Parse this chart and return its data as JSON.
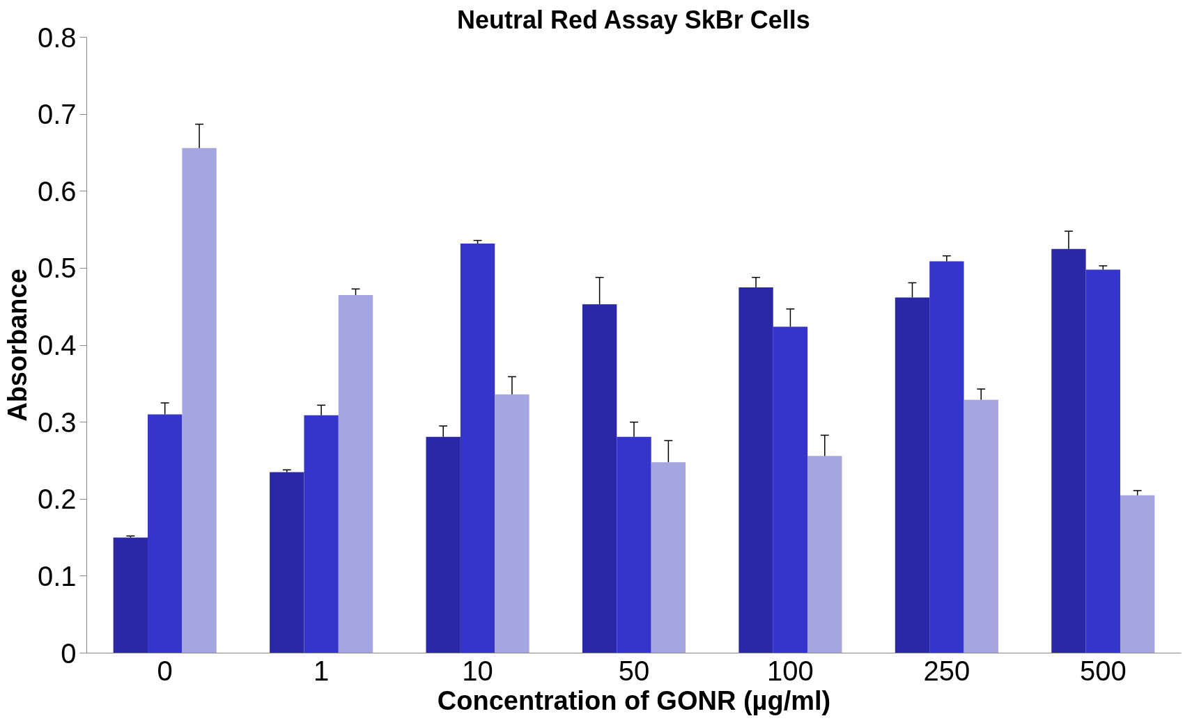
{
  "chart_data": {
    "type": "bar",
    "title": "Neutral Red Assay SkBr Cells",
    "xlabel": "Concentration of GONR (µg/ml)",
    "ylabel": "Absorbance",
    "categories": [
      "0",
      "1",
      "10",
      "50",
      "100",
      "250",
      "500"
    ],
    "series": [
      {
        "color": "#2a28a6",
        "values": [
          0.15,
          0.235,
          0.281,
          0.453,
          0.475,
          0.462,
          0.525
        ],
        "errors": [
          [
            0.15,
            0.152
          ],
          [
            0.235,
            0.238
          ],
          [
            0.281,
            0.295
          ],
          [
            0.453,
            0.488
          ],
          [
            0.475,
            0.488
          ],
          [
            0.462,
            0.481
          ],
          [
            0.525,
            0.548
          ]
        ]
      },
      {
        "color": "#3535cc",
        "values": [
          0.31,
          0.309,
          0.532,
          0.281,
          0.424,
          0.509,
          0.498
        ],
        "errors": [
          [
            0.31,
            0.325
          ],
          [
            0.309,
            0.322
          ],
          [
            0.532,
            0.536
          ],
          [
            0.281,
            0.3
          ],
          [
            0.424,
            0.447
          ],
          [
            0.509,
            0.516
          ],
          [
            0.498,
            0.503
          ]
        ]
      },
      {
        "color": "#a5a5e0",
        "values": [
          0.656,
          0.465,
          0.336,
          0.248,
          0.256,
          0.329,
          0.205
        ],
        "errors": [
          [
            0.656,
            0.687
          ],
          [
            0.465,
            0.473
          ],
          [
            0.336,
            0.359
          ],
          [
            0.248,
            0.276
          ],
          [
            0.256,
            0.283
          ],
          [
            0.329,
            0.343
          ],
          [
            0.205,
            0.211
          ]
        ]
      }
    ],
    "ylim": [
      0,
      0.8
    ],
    "yticks": [
      0,
      0.1,
      0.2,
      0.3,
      0.4,
      0.5,
      0.6,
      0.7,
      0.8
    ],
    "grid": false
  }
}
